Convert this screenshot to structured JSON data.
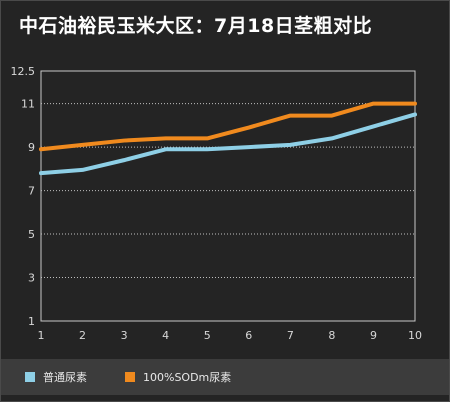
{
  "chart_data": {
    "type": "line",
    "title": "中石油裕民玉米大区：7月18日茎粗对比",
    "x": [
      1,
      2,
      3,
      4,
      5,
      6,
      7,
      8,
      9,
      10
    ],
    "series": [
      {
        "name": "普通尿素",
        "color": "#8ecfe6",
        "values": [
          7.8,
          7.95,
          8.4,
          8.9,
          8.9,
          9.0,
          9.1,
          9.4,
          9.95,
          10.5
        ]
      },
      {
        "name": "100%SODm尿素",
        "color": "#f08a1e",
        "values": [
          8.9,
          9.1,
          9.3,
          9.4,
          9.4,
          9.9,
          10.45,
          10.45,
          11.0,
          11.0
        ]
      }
    ],
    "yticks": [
      "1",
      "3",
      "5",
      "7",
      "9",
      "11",
      "12.5"
    ],
    "xticks": [
      "1",
      "2",
      "3",
      "4",
      "5",
      "6",
      "7",
      "8",
      "9",
      "10"
    ],
    "ylim": [
      1,
      12.5
    ],
    "xlabel": "",
    "ylabel": "",
    "grid": true,
    "legend": "bottom"
  },
  "colors": {
    "background": "#242424",
    "legend_bar": "#3c3c3c",
    "axis": "#c8c8c8",
    "grid": "#bfbfbf"
  }
}
